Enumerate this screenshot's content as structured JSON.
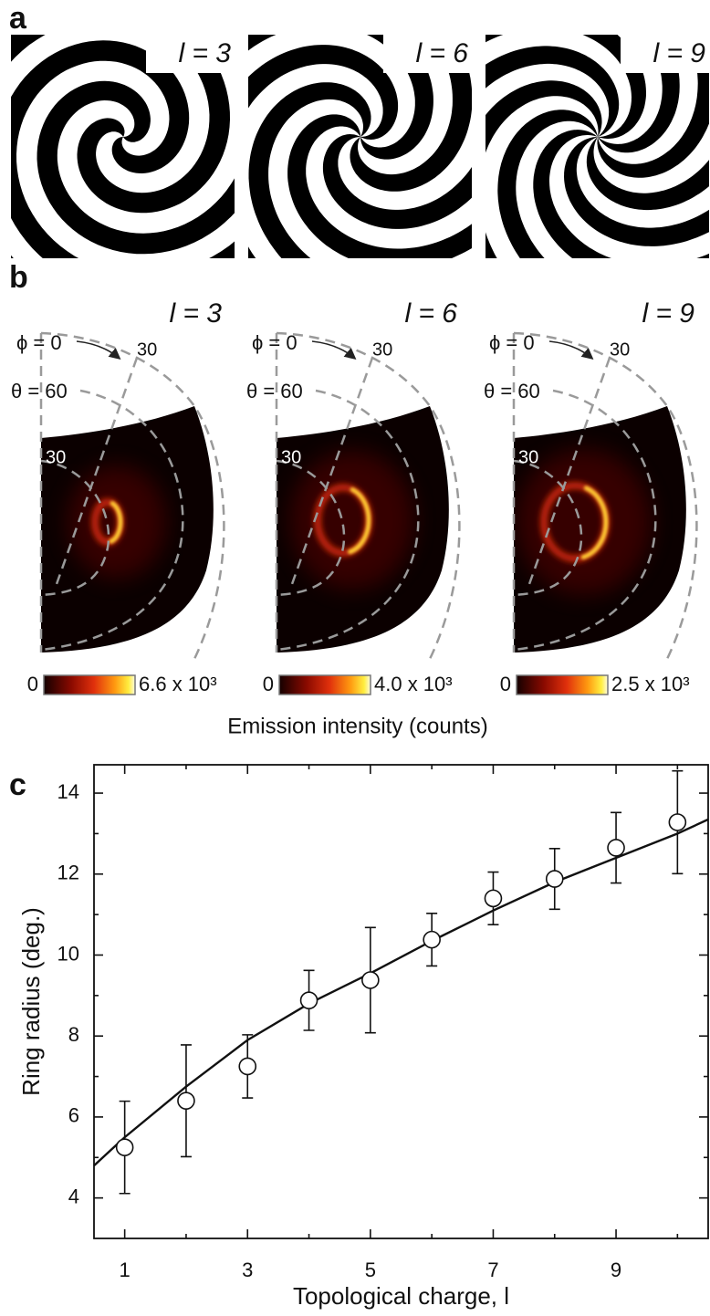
{
  "panel_labels": [
    "a",
    "b",
    "c"
  ],
  "panel_a": {
    "charges": [
      3,
      6,
      9
    ],
    "labels": [
      "l = 3",
      "l = 6",
      "l = 9"
    ]
  },
  "panel_b": {
    "panels": [
      {
        "label": "l = 3",
        "phi_label": "ϕ = 0",
        "phi_tick": "30",
        "theta_label": "θ = 60",
        "theta_tick": "30",
        "colorbar_min": "0",
        "colorbar_max": "6.6 x 10³"
      },
      {
        "label": "l = 6",
        "phi_label": "ϕ = 0",
        "phi_tick": "30",
        "theta_label": "θ = 60",
        "theta_tick": "30",
        "colorbar_min": "0",
        "colorbar_max": "4.0 x 10³"
      },
      {
        "label": "l = 9",
        "phi_label": "ϕ = 0",
        "phi_tick": "30",
        "theta_label": "θ = 60",
        "theta_tick": "30",
        "colorbar_min": "0",
        "colorbar_max": "2.5 x 10³"
      }
    ],
    "colorbar_title": "Emission intensity (counts)"
  },
  "chart_data": {
    "type": "scatter",
    "x_label": "Topological charge, l",
    "y_label": "Ring radius (deg.)",
    "x": [
      1,
      2,
      3,
      4,
      5,
      6,
      7,
      8,
      9,
      10
    ],
    "values": [
      5.25,
      6.4,
      7.25,
      8.88,
      9.38,
      10.38,
      11.4,
      11.88,
      12.65,
      13.28
    ],
    "errors": [
      1.14,
      1.38,
      0.78,
      0.74,
      1.3,
      0.65,
      0.65,
      0.75,
      0.87,
      1.27
    ],
    "fit": {
      "x": [
        0.5,
        1,
        2,
        3,
        4,
        5,
        6,
        7,
        8,
        9,
        10,
        10.5
      ],
      "y": [
        4.8,
        5.5,
        6.75,
        7.9,
        8.8,
        9.55,
        10.35,
        11.1,
        11.8,
        12.4,
        13.0,
        13.35
      ]
    },
    "xlim": [
      0.5,
      10.5
    ],
    "ylim": [
      3,
      14.7
    ],
    "xticks": [
      1,
      3,
      5,
      7,
      9
    ],
    "yticks": [
      4,
      6,
      8,
      10,
      12,
      14
    ],
    "x_minor_ticks": [
      2,
      4,
      6,
      8,
      10
    ],
    "y_minor_ticks": [
      5,
      7,
      9,
      11,
      13
    ]
  }
}
